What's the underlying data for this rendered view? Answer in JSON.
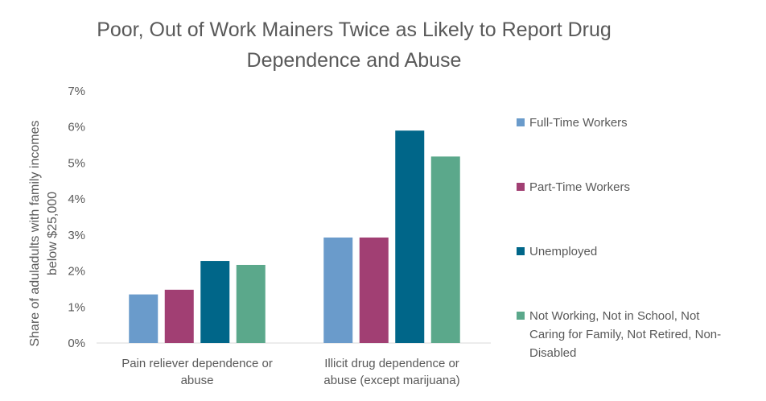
{
  "chart_data": {
    "type": "bar",
    "title_line1": "Poor, Out of Work Mainers Twice as Likely to Report Drug",
    "title_line2": "Dependence and Abuse",
    "ylabel_line1": "Share of  aduladults with family incomes",
    "ylabel_line2": "below $25,000",
    "xlabel": "",
    "ylim": [
      0,
      7
    ],
    "y_ticks": [
      "0%",
      "1%",
      "2%",
      "3%",
      "4%",
      "5%",
      "6%",
      "7%"
    ],
    "categories": [
      [
        "Pain reliever dependence or",
        "abuse"
      ],
      [
        "Illicit drug dependence or",
        "abuse (except marijuana)"
      ]
    ],
    "series": [
      {
        "name": "Full-Time Workers",
        "color": "#6a9bcb",
        "values": [
          1.35,
          2.93
        ]
      },
      {
        "name": "Part-Time Workers",
        "color": "#a13f73",
        "values": [
          1.48,
          2.93
        ]
      },
      {
        "name": "Unemployed",
        "color": "#006689",
        "values": [
          2.28,
          5.9
        ]
      },
      {
        "name": [
          "Not Working, Not in School, Not",
          "Caring for Family, Not Retired, Non-",
          "Disabled"
        ],
        "color": "#5ba88b",
        "values": [
          2.17,
          5.18
        ]
      }
    ],
    "legend_position": "right",
    "grid": false
  }
}
